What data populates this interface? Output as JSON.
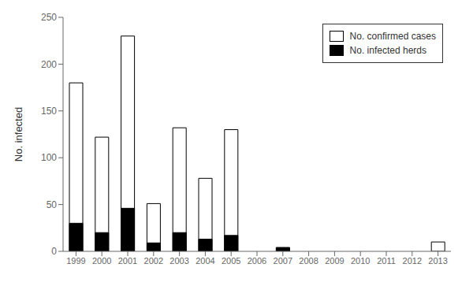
{
  "chart_data": {
    "type": "bar",
    "categories": [
      "1999",
      "2000",
      "2001",
      "2002",
      "2003",
      "2004",
      "2005",
      "2006",
      "2007",
      "2008",
      "2009",
      "2010",
      "2011",
      "2012",
      "2013"
    ],
    "series": [
      {
        "name": "No. confirmed cases",
        "color": "#ffffff",
        "values": [
          180,
          122,
          230,
          51,
          132,
          78,
          130,
          0,
          4,
          0,
          0,
          0,
          0,
          0,
          10
        ]
      },
      {
        "name": "No. infected herds",
        "color": "#000000",
        "values": [
          30,
          20,
          46,
          9,
          20,
          13,
          17,
          0,
          4,
          0,
          0,
          0,
          0,
          0,
          0
        ]
      }
    ],
    "ylabel": "No. infected",
    "ylim": [
      0,
      250
    ],
    "yticks": [
      0,
      50,
      100,
      150,
      200,
      250
    ],
    "legend": "upper right",
    "grid": false
  }
}
